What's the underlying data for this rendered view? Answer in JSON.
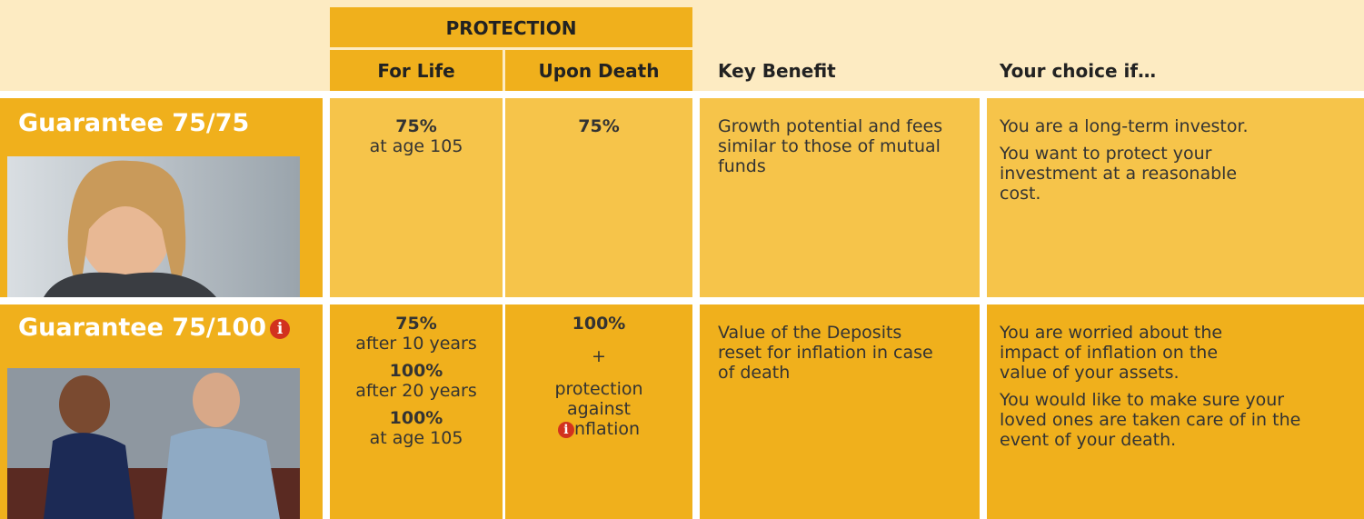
{
  "header": {
    "group": "PROTECTION",
    "columns": [
      "For Life",
      "Upon Death",
      "Key Benefit",
      "Your choice if…"
    ]
  },
  "rows": [
    {
      "name": "Guarantee 75/75",
      "for_life": [
        {
          "value": "75%",
          "note": "at age 105"
        }
      ],
      "upon_death": [
        "75%"
      ],
      "key_benefit": "Growth potential and fees similar to those of mutual funds",
      "choices": [
        "You are a long-term investor.",
        "You want to protect your investment at a reasonable cost."
      ]
    },
    {
      "name": "Guarantee 75/100",
      "for_life": [
        {
          "value": "75%",
          "note": "after 10 years"
        },
        {
          "value": "100%",
          "note": "after 20 years"
        },
        {
          "value": "100%",
          "note": "at age 105"
        }
      ],
      "upon_death": [
        "100%",
        "+",
        "protection",
        "against",
        "nflation"
      ],
      "key_benefit": "Value of the Deposits reset for inflation in case of death",
      "choices": [
        "You are worried about the impact of inflation on the value of your assets.",
        "You would like to make sure your loved ones are taken care of in the event of your death."
      ]
    }
  ]
}
